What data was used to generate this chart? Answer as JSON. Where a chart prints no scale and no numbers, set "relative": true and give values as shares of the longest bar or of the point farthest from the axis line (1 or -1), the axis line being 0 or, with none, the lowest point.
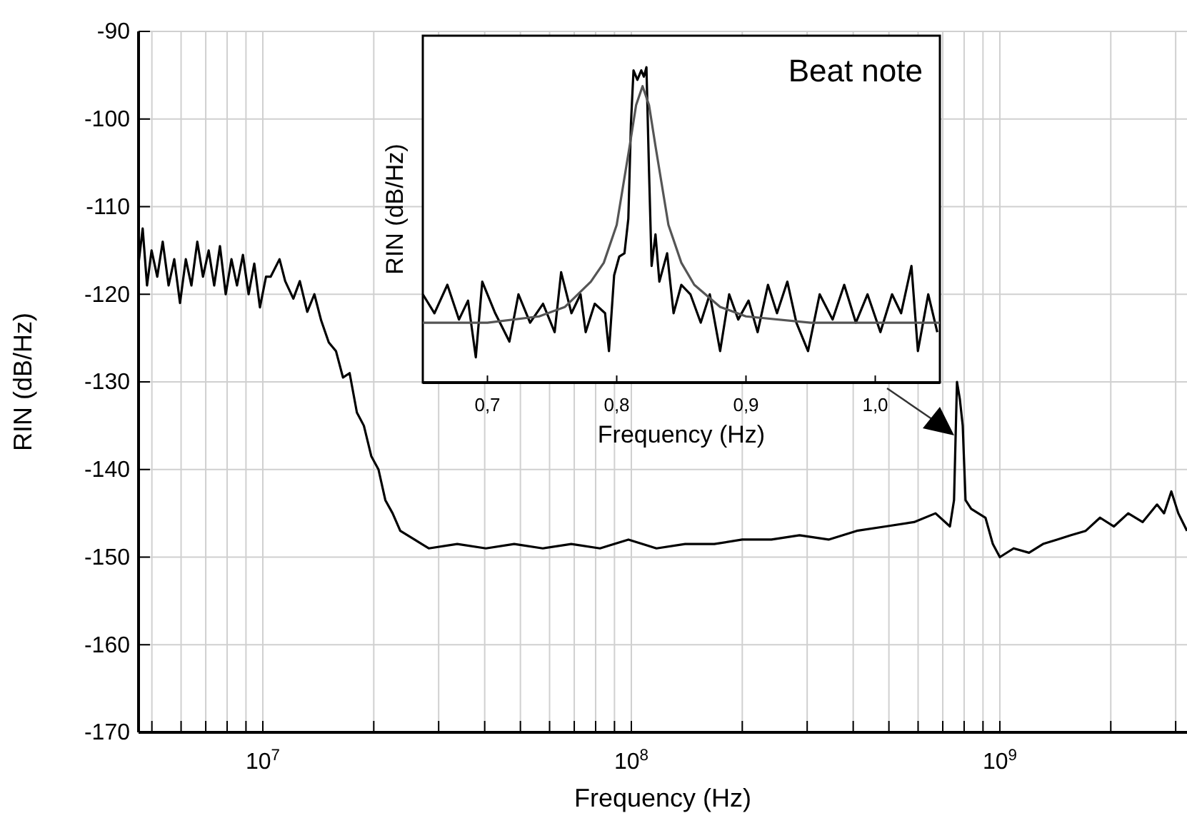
{
  "chart_data": [
    {
      "type": "line",
      "xlabel": "Frequency (Hz)",
      "ylabel": "RIN (dB/Hz)",
      "log": "x",
      "grid": true,
      "xlim": [
        4600000.0,
        3220000000.0
      ],
      "ylim": [
        -170,
        -90
      ],
      "xticks": [
        {
          "value": 5000000.0,
          "label": null
        },
        {
          "value": 6000000.0,
          "label": null
        },
        {
          "value": 7000000.0,
          "label": null
        },
        {
          "value": 8000000.0,
          "label": null
        },
        {
          "value": 9000000.0,
          "label": null
        },
        {
          "value": 10000000.0,
          "label": "10$^{7}$"
        },
        {
          "value": 20000000.0,
          "label": null
        },
        {
          "value": 30000000.0,
          "label": null
        },
        {
          "value": 40000000.0,
          "label": null
        },
        {
          "value": 50000000.0,
          "label": null
        },
        {
          "value": 60000000.0,
          "label": null
        },
        {
          "value": 70000000.0,
          "label": null
        },
        {
          "value": 80000000.0,
          "label": null
        },
        {
          "value": 90000000.0,
          "label": null
        },
        {
          "value": 100000000.0,
          "label": "10$^{8}$"
        },
        {
          "value": 200000000.0,
          "label": null
        },
        {
          "value": 300000000.0,
          "label": null
        },
        {
          "value": 400000000.0,
          "label": null
        },
        {
          "value": 500000000.0,
          "label": null
        },
        {
          "value": 600000000.0,
          "label": null
        },
        {
          "value": 700000000.0,
          "label": null
        },
        {
          "value": 800000000.0,
          "label": null
        },
        {
          "value": 900000000.0,
          "label": null
        },
        {
          "value": 1000000000.0,
          "label": "10$^{9}$"
        },
        {
          "value": 2000000000.0,
          "label": null
        },
        {
          "value": 3000000000.0,
          "label": null
        }
      ],
      "yticks": [
        -170,
        -160,
        -150,
        -140,
        -130,
        -120,
        -110,
        -100,
        -90
      ],
      "series": [
        {
          "color": "#000000",
          "x": [
            4600000.0,
            4720000.0,
            4850000.0,
            4990000.0,
            5170000.0,
            5350000.0,
            5550000.0,
            5750000.0,
            5960000.0,
            6180000.0,
            6400000.0,
            6640000.0,
            6880000.0,
            7130000.0,
            7380000.0,
            7650000.0,
            7930000.0,
            8220000.0,
            8510000.0,
            8830000.0,
            9150000.0,
            9480000.0,
            9820000.0,
            10200000.0,
            10500000.0,
            11100000.0,
            11500000.0,
            12100000.0,
            12600000.0,
            13200000.0,
            13800000.0,
            14400000.0,
            15100000.0,
            15800000.0,
            16500000.0,
            17200000.0,
            18000000.0,
            18800000.0,
            19700000.0,
            20600000.0,
            21500000.0,
            22500000.0,
            23600000.0,
            25800000.0,
            28200000.0,
            33700000.0,
            40300000.0,
            48100000.0,
            57500000.0,
            68700000.0,
            82200000.0,
            98200000.0,
            117000000.0,
            140000000.0,
            168000000.0,
            200000000.0,
            240000000.0,
            286000000.0,
            343000000.0,
            409000000.0,
            490000000.0,
            585000000.0,
            669000000.0,
            732000000.0,
            751000000.0,
            765000000.0,
            779000000.0,
            793000000.0,
            807000000.0,
            836000000.0,
            914000000.0,
            957000000.0,
            1000000000.0,
            1090000000.0,
            1200000000.0,
            1310000000.0,
            1430000000.0,
            1560000000.0,
            1710000000.0,
            1870000000.0,
            2040000000.0,
            2230000000.0,
            2440000000.0,
            2670000000.0,
            2790000000.0,
            2920000000.0,
            3050000000.0,
            3220000000.0
          ],
          "values": [
            -116.5,
            -112.5,
            -119,
            -115,
            -118,
            -114,
            -119,
            -116,
            -121,
            -116,
            -119,
            -114,
            -118,
            -115,
            -119,
            -114.5,
            -120,
            -116,
            -119,
            -115.5,
            -120,
            -116.5,
            -121.5,
            -118,
            -118,
            -116,
            -118.5,
            -120.5,
            -118.5,
            -122,
            -120,
            -123,
            -125.5,
            -126.5,
            -129.5,
            -129,
            -133.5,
            -135,
            -138.5,
            -140,
            -143.5,
            -145,
            -147,
            -148,
            -149,
            -148.5,
            -149,
            -148.5,
            -149,
            -148.5,
            -149,
            -148,
            -149,
            -148.5,
            -148.5,
            -148,
            -148,
            -147.5,
            -148,
            -147,
            -146.5,
            -146,
            -145,
            -146.5,
            -143.5,
            -130,
            -132,
            -135,
            -143.5,
            -144.5,
            -145.5,
            -148.5,
            -150,
            -149,
            -149.5,
            -148.5,
            -148,
            -147.5,
            -147,
            -145.5,
            -146.5,
            -145,
            -146,
            -144,
            -145,
            -142.5,
            -145,
            -147
          ]
        }
      ]
    },
    {
      "type": "line",
      "relative": true,
      "xlabel": "Frequency (Hz)",
      "ylabel": "RIN (dB/Hz)",
      "annotations": [
        "Beat note"
      ],
      "tick_labels": "x",
      "xlim": [
        0.65,
        1.05
      ],
      "xticks": [
        {
          "value": 0.7,
          "label": "0,7"
        },
        {
          "value": 0.8,
          "label": "0,8"
        },
        {
          "value": 0.9,
          "label": "0,9"
        },
        {
          "value": 1.0,
          "label": "1,0"
        }
      ],
      "series": [
        {
          "color": "#000000",
          "x": [
            0.65,
            0.659,
            0.669,
            0.678,
            0.685,
            0.691,
            0.696,
            0.706,
            0.717,
            0.724,
            0.733,
            0.743,
            0.752,
            0.757,
            0.765,
            0.772,
            0.776,
            0.783,
            0.791,
            0.794,
            0.798,
            0.802,
            0.806,
            0.809,
            0.811,
            0.813,
            0.816,
            0.819,
            0.821,
            0.823,
            0.825,
            0.827,
            0.83,
            0.833,
            0.839,
            0.844,
            0.85,
            0.857,
            0.865,
            0.872,
            0.88,
            0.887,
            0.894,
            0.902,
            0.909,
            0.917,
            0.924,
            0.932,
            0.939,
            0.948,
            0.957,
            0.967,
            0.976,
            0.985,
            0.994,
            1.004,
            1.013,
            1.02,
            1.028,
            1.033,
            1.041,
            1.048
          ],
          "values": [
            0.28,
            0.22,
            0.31,
            0.2,
            0.26,
            0.08,
            0.32,
            0.22,
            0.13,
            0.28,
            0.19,
            0.25,
            0.16,
            0.35,
            0.22,
            0.28,
            0.16,
            0.25,
            0.22,
            0.1,
            0.34,
            0.4,
            0.41,
            0.52,
            0.82,
            0.99,
            0.96,
            0.99,
            0.97,
            1.0,
            0.67,
            0.37,
            0.47,
            0.32,
            0.41,
            0.22,
            0.31,
            0.28,
            0.19,
            0.28,
            0.1,
            0.28,
            0.2,
            0.26,
            0.16,
            0.31,
            0.22,
            0.32,
            0.19,
            0.1,
            0.28,
            0.2,
            0.31,
            0.19,
            0.28,
            0.16,
            0.28,
            0.22,
            0.37,
            0.1,
            0.28,
            0.16
          ]
        },
        {
          "color": "#555555",
          "x": [
            0.65,
            0.7,
            0.74,
            0.76,
            0.78,
            0.79,
            0.8,
            0.81,
            0.815,
            0.82,
            0.825,
            0.83,
            0.84,
            0.85,
            0.86,
            0.88,
            0.9,
            0.95,
            1.05
          ],
          "values": [
            0.19,
            0.19,
            0.21,
            0.24,
            0.32,
            0.38,
            0.5,
            0.75,
            0.88,
            0.94,
            0.88,
            0.75,
            0.5,
            0.38,
            0.31,
            0.24,
            0.21,
            0.19,
            0.19
          ]
        }
      ]
    }
  ]
}
